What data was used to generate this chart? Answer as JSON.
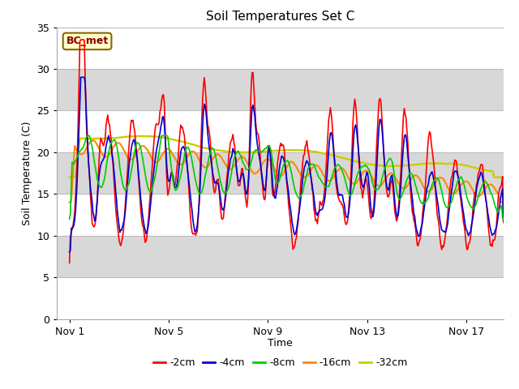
{
  "title": "Soil Temperatures Set C",
  "xlabel": "Time",
  "ylabel": "Soil Temperature (C)",
  "xlim": [
    0.5,
    18.5
  ],
  "ylim": [
    0,
    35
  ],
  "yticks": [
    0,
    5,
    10,
    15,
    20,
    25,
    30,
    35
  ],
  "xtick_labels": [
    "Nov 1",
    "Nov 5",
    "Nov 9",
    "Nov 13",
    "Nov 17"
  ],
  "xtick_positions": [
    1,
    5,
    9,
    13,
    17
  ],
  "background_color": "#d8d8d8",
  "band_colors": [
    "#ffffff",
    "#d8d8d8"
  ],
  "colors": {
    "-2cm": "#ff0000",
    "-4cm": "#0000cc",
    "-8cm": "#00cc00",
    "-16cm": "#ff8800",
    "-32cm": "#cccc00"
  },
  "annotation_text": "BC_met",
  "linewidth": 1.2
}
